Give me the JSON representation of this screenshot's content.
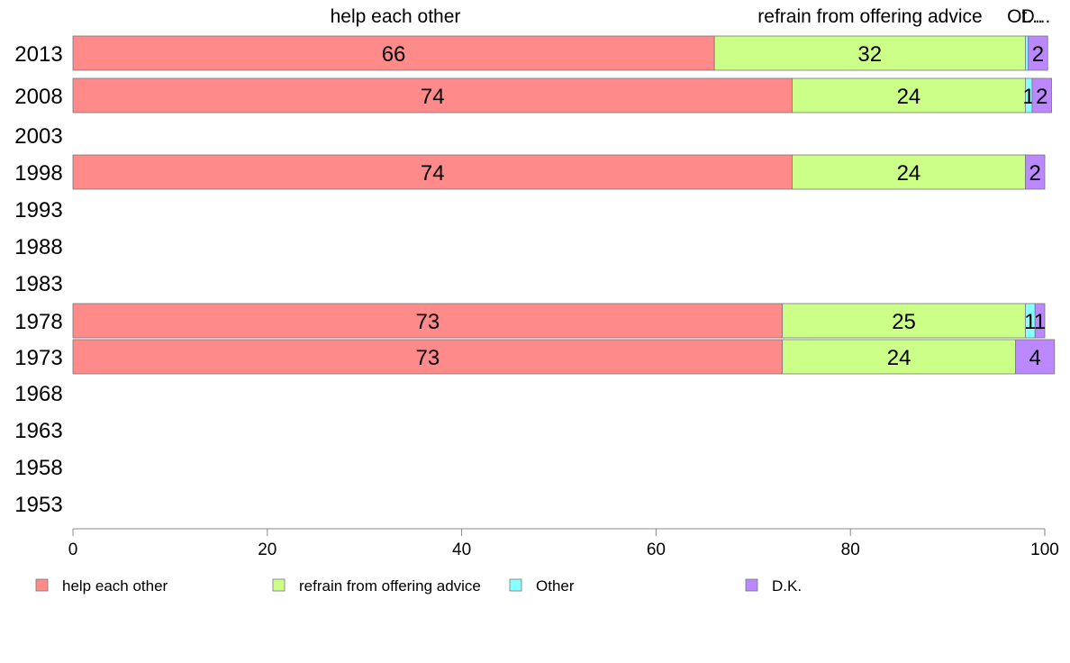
{
  "chart_data": {
    "type": "bar",
    "orientation": "horizontal",
    "stacked": true,
    "categories": [
      "2013",
      "2008",
      "2003",
      "1998",
      "1993",
      "1988",
      "1983",
      "1978",
      "1973",
      "1968",
      "1963",
      "1958",
      "1953"
    ],
    "series": [
      {
        "name": "help each other",
        "color": "#ff8a8a",
        "values": [
          66,
          74,
          null,
          74,
          null,
          null,
          null,
          73,
          73,
          null,
          null,
          null,
          null
        ]
      },
      {
        "name": "refrain from offering advice",
        "color": "#ccff88",
        "values": [
          32,
          24,
          null,
          24,
          null,
          null,
          null,
          25,
          24,
          null,
          null,
          null,
          null
        ]
      },
      {
        "name": "Other",
        "color": "#88ffff",
        "values": [
          0.3,
          0.7,
          null,
          0,
          null,
          null,
          null,
          1,
          0,
          null,
          null,
          null,
          null
        ]
      },
      {
        "name": "D.K.",
        "color": "#bb88ff",
        "values": [
          2,
          2,
          null,
          2,
          null,
          null,
          null,
          1,
          4,
          null,
          null,
          null,
          null
        ]
      }
    ],
    "data_labels": [
      [
        "66",
        "32",
        "",
        "2"
      ],
      [
        "74",
        "24",
        "1",
        "2"
      ],
      [],
      [
        "74",
        "24",
        "",
        "2"
      ],
      [],
      [],
      [],
      [
        "73",
        "25",
        "1",
        "1"
      ],
      [
        "73",
        "24",
        "",
        "4"
      ],
      [],
      [],
      [],
      []
    ],
    "top_labels": [
      "help each other",
      "refrain from offering advice",
      "Ot...",
      "D..."
    ],
    "xlim": [
      0,
      100
    ],
    "xticks": [
      0,
      20,
      40,
      60,
      80,
      100
    ],
    "legend": [
      "help each other",
      "refrain from offering advice",
      "Other",
      "D.K."
    ],
    "legend_position": "bottom",
    "grid": false
  }
}
